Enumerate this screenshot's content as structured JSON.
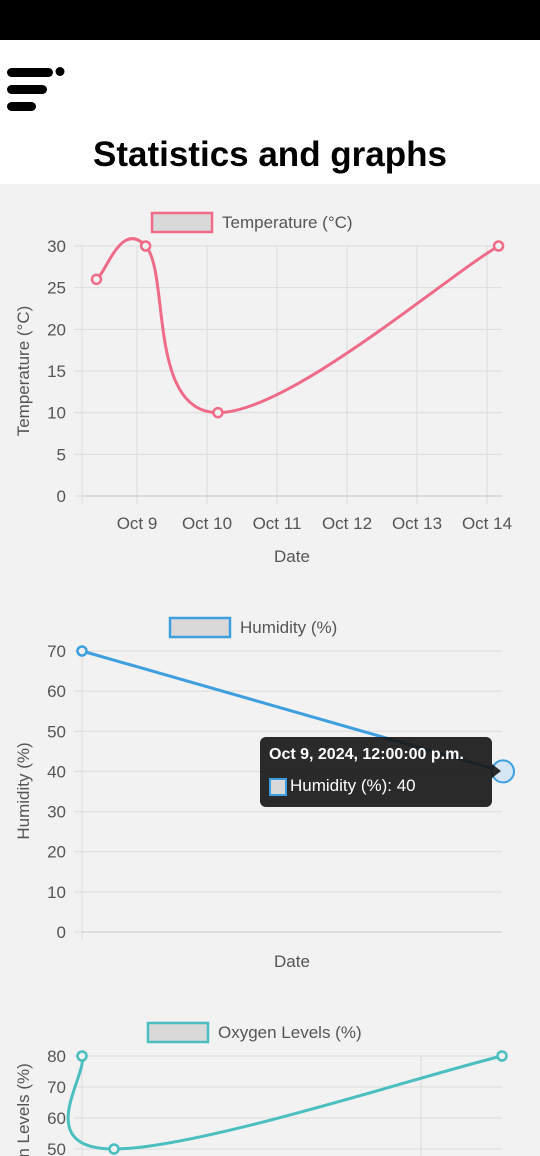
{
  "header": {
    "title": "Statistics and graphs",
    "menu_icon": "hamburger-menu-icon"
  },
  "tooltip": {
    "title": "Oct 9, 2024, 12:00:00 p.m.",
    "body": "Humidity (%): 40"
  },
  "chart_data": [
    {
      "type": "line",
      "legend": "Temperature (°C)",
      "xlabel": "Date",
      "ylabel": "Temperature (°C)",
      "color": "#f06b88",
      "x_ticks": [
        "Oct 9",
        "Oct 10",
        "Oct 11",
        "Oct 12",
        "Oct 13",
        "Oct 14"
      ],
      "ylim": [
        0,
        30
      ],
      "y_ticks": [
        0,
        5,
        10,
        15,
        20,
        25,
        30
      ],
      "x": [
        "2024-10-08 09:00",
        "2024-10-09 02:00",
        "2024-10-10 03:00",
        "2024-10-14 04:00"
      ],
      "values": [
        26,
        30,
        10,
        30
      ],
      "grid": true
    },
    {
      "type": "line",
      "legend": "Humidity (%)",
      "xlabel": "Date",
      "ylabel": "Humidity (%)",
      "color": "#3d9fe0",
      "ylim": [
        0,
        70
      ],
      "y_ticks": [
        0,
        10,
        20,
        30,
        40,
        50,
        60,
        70
      ],
      "x_ticks": [],
      "values": [
        70,
        40
      ],
      "grid": true
    },
    {
      "type": "line",
      "legend": "Oxygen Levels (%)",
      "ylabel": "Oxygen Levels (%)",
      "color": "#4bbfbf",
      "y_ticks": [
        50,
        60,
        70,
        80
      ],
      "values": [
        80,
        50,
        80
      ],
      "grid": true
    }
  ]
}
